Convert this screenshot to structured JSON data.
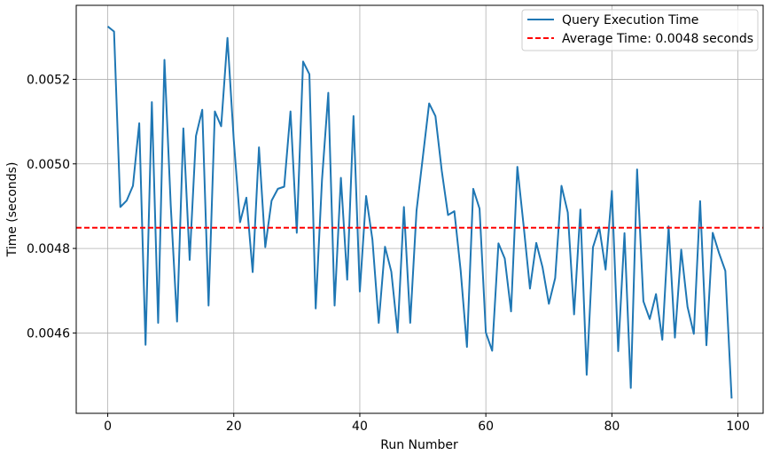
{
  "chart_data": {
    "type": "line",
    "title": "",
    "xlabel": "Run Number",
    "ylabel": "Time (seconds)",
    "xlim": [
      -5,
      104
    ],
    "ylim": [
      0.00441,
      0.005375
    ],
    "x_ticks": [
      0,
      20,
      40,
      60,
      80,
      100
    ],
    "y_ticks": [
      0.0046,
      0.0048,
      0.005,
      0.0052
    ],
    "x_tick_labels": [
      "0",
      "20",
      "40",
      "60",
      "80",
      "100"
    ],
    "y_tick_labels": [
      "0.0046",
      "0.0048",
      "0.0050",
      "0.0052"
    ],
    "grid": true,
    "legend_position": "upper right",
    "series": [
      {
        "name": "Query Execution Time",
        "color": "#1f77b4",
        "x": [
          0,
          1,
          2,
          3,
          4,
          5,
          6,
          7,
          8,
          9,
          10,
          11,
          12,
          13,
          14,
          15,
          16,
          17,
          18,
          19,
          20,
          21,
          22,
          23,
          24,
          25,
          26,
          27,
          28,
          29,
          30,
          31,
          32,
          33,
          34,
          35,
          36,
          37,
          38,
          39,
          40,
          41,
          42,
          43,
          44,
          45,
          46,
          47,
          48,
          49,
          50,
          51,
          52,
          53,
          54,
          55,
          56,
          57,
          58,
          59,
          60,
          61,
          62,
          63,
          64,
          65,
          66,
          67,
          68,
          69,
          70,
          71,
          72,
          73,
          74,
          75,
          76,
          77,
          78,
          79,
          80,
          81,
          82,
          83,
          84,
          85,
          86,
          87,
          88,
          89,
          90,
          91,
          92,
          93,
          94,
          95,
          96,
          97,
          98,
          99
        ],
        "y": [
          0.005325,
          0.005313,
          0.004898,
          0.004913,
          0.004948,
          0.005096,
          0.004572,
          0.005146,
          0.004624,
          0.005246,
          0.004901,
          0.004627,
          0.005084,
          0.004773,
          0.005066,
          0.005128,
          0.004665,
          0.005124,
          0.005089,
          0.005298,
          0.005056,
          0.004862,
          0.00492,
          0.004744,
          0.005039,
          0.004803,
          0.004913,
          0.004941,
          0.004946,
          0.005124,
          0.004837,
          0.005242,
          0.005212,
          0.004658,
          0.004962,
          0.005168,
          0.004665,
          0.004967,
          0.004726,
          0.005113,
          0.004698,
          0.004924,
          0.004821,
          0.004624,
          0.004804,
          0.004745,
          0.004601,
          0.004898,
          0.004624,
          0.004889,
          0.005016,
          0.005143,
          0.005113,
          0.004984,
          0.004879,
          0.004888,
          0.004748,
          0.004567,
          0.004941,
          0.004894,
          0.004601,
          0.004558,
          0.004812,
          0.004776,
          0.004651,
          0.004993,
          0.004853,
          0.004705,
          0.004813,
          0.004755,
          0.004669,
          0.00473,
          0.004948,
          0.004885,
          0.004644,
          0.004892,
          0.004501,
          0.004803,
          0.00485,
          0.00475,
          0.004936,
          0.004557,
          0.004836,
          0.00447,
          0.004987,
          0.004675,
          0.004633,
          0.004692,
          0.004584,
          0.004852,
          0.004589,
          0.004797,
          0.004662,
          0.004598,
          0.004912,
          0.004571,
          0.004837,
          0.004789,
          0.004747,
          0.004445
        ]
      },
      {
        "name": "Average Time: 0.0048 seconds",
        "color": "#ff0000",
        "constant_y": 0.004849
      }
    ]
  }
}
